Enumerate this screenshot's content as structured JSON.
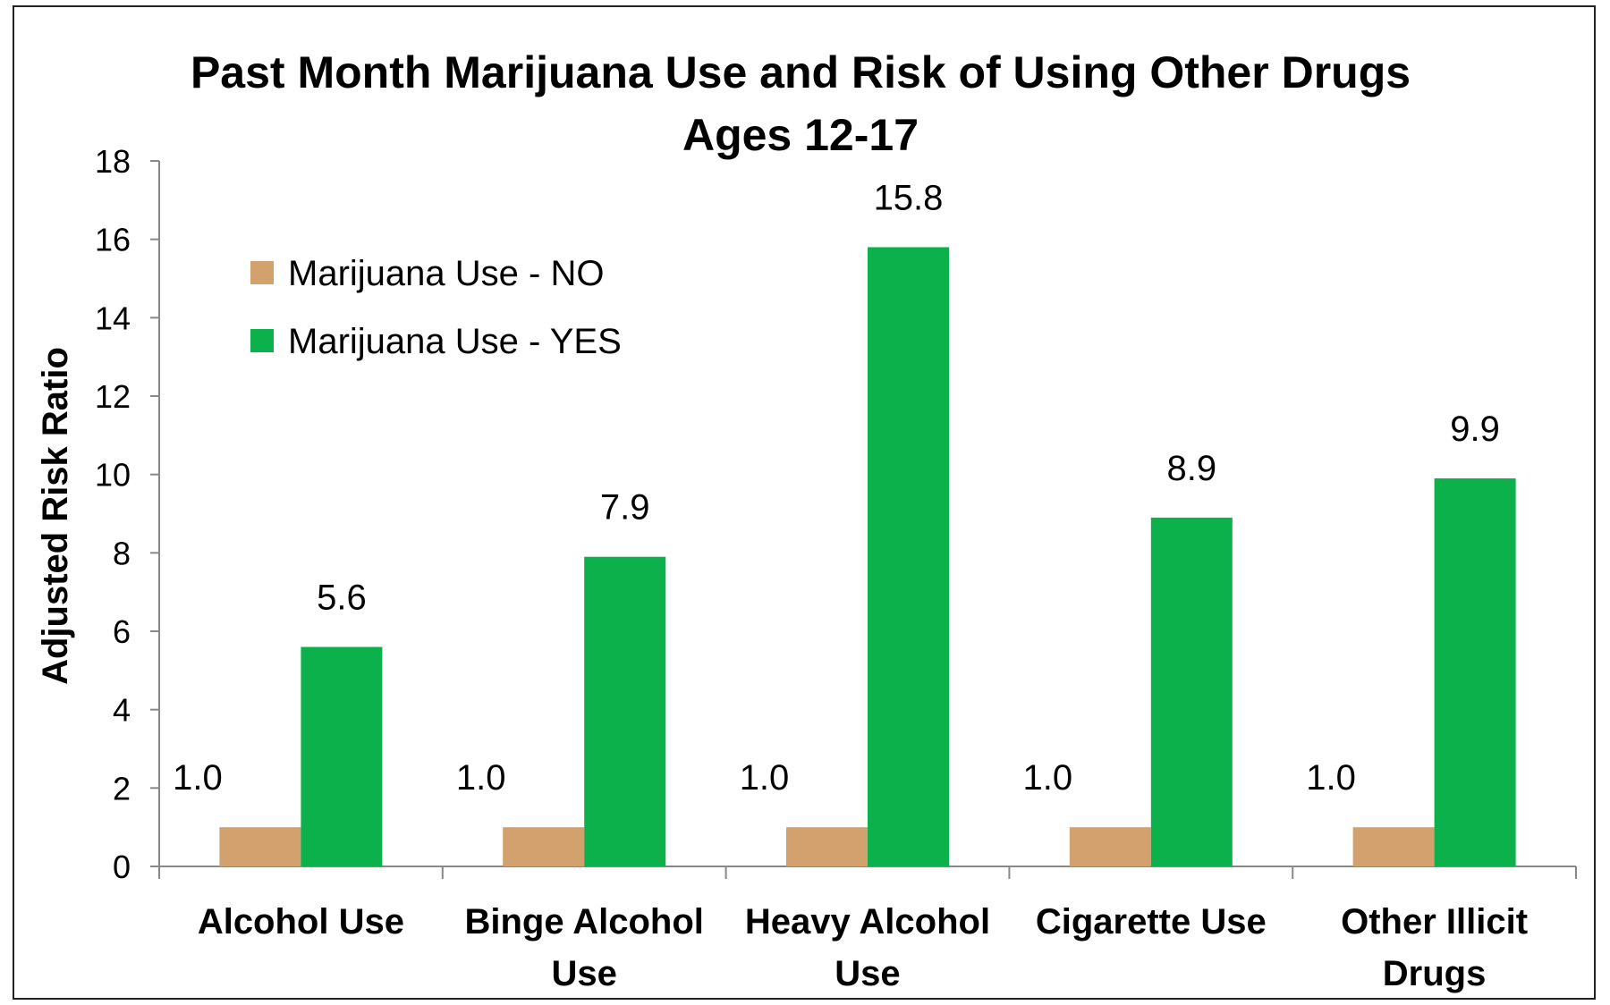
{
  "chart_data": {
    "type": "bar",
    "title": "Past Month Marijuana Use and Risk of Using Other Drugs",
    "subtitle": "Ages 12-17",
    "ylabel": "Adjusted Risk Ratio",
    "xlabel": "",
    "ylim": [
      0,
      18
    ],
    "yticks": [
      0,
      2,
      4,
      6,
      8,
      10,
      12,
      14,
      16,
      18
    ],
    "grid": false,
    "legend_position": "top-left",
    "categories": [
      [
        "Alcohol Use"
      ],
      [
        "Binge Alcohol",
        "Use"
      ],
      [
        "Heavy Alcohol",
        "Use"
      ],
      [
        "Cigarette Use"
      ],
      [
        "Other Illicit",
        "Drugs"
      ]
    ],
    "series": [
      {
        "name": "Marijuana Use - NO",
        "color": "#d3a16e",
        "values": [
          1.0,
          1.0,
          1.0,
          1.0,
          1.0
        ],
        "labels": [
          "1.0",
          "1.0",
          "1.0",
          "1.0",
          "1.0"
        ]
      },
      {
        "name": "Marijuana Use - YES",
        "color": "#0db14b",
        "values": [
          5.6,
          7.9,
          15.8,
          8.9,
          9.9
        ],
        "labels": [
          "5.6",
          "7.9",
          "15.8",
          "8.9",
          "9.9"
        ]
      }
    ]
  }
}
